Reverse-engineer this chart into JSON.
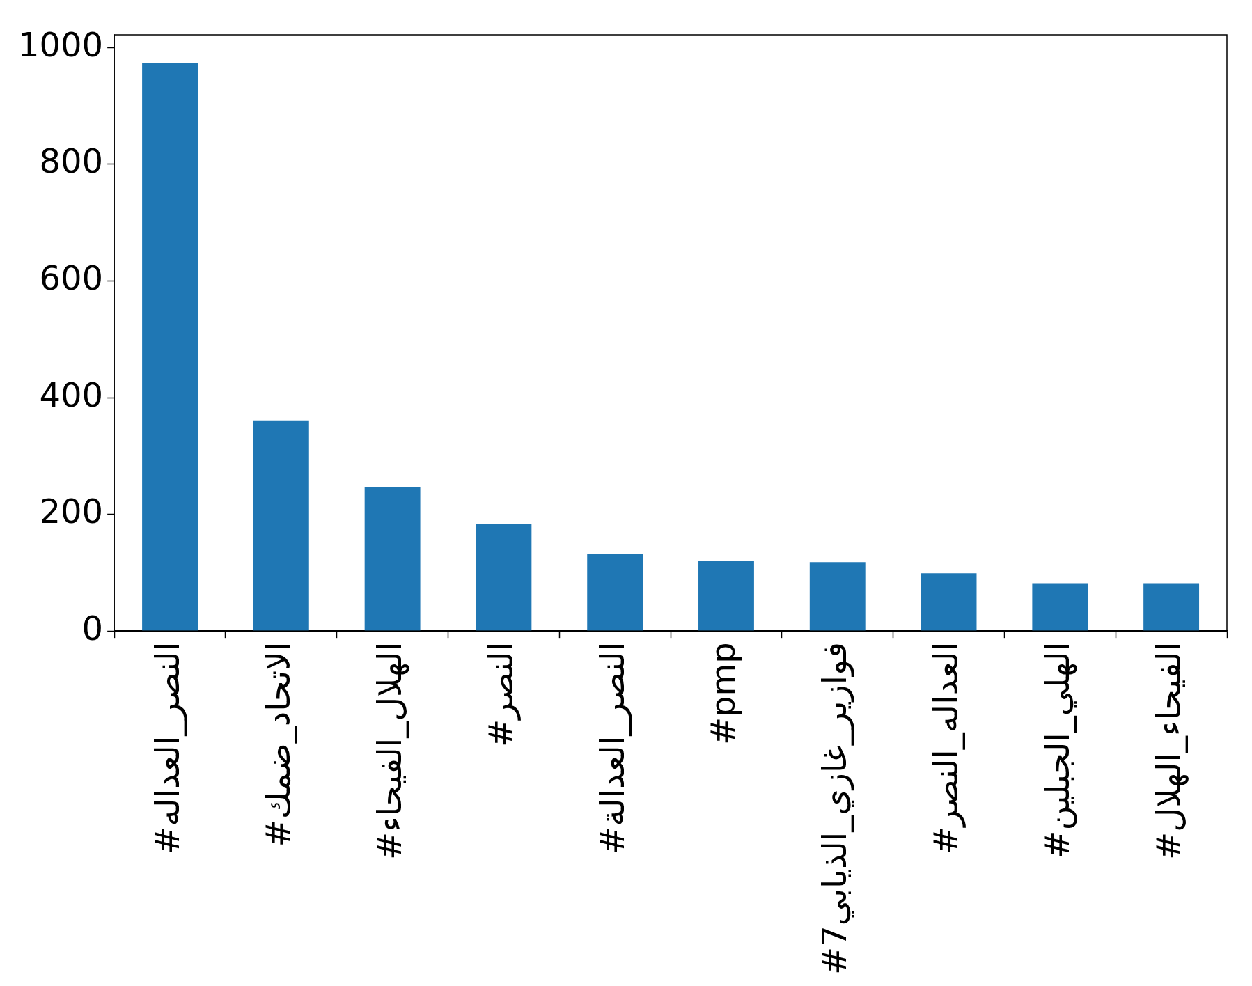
{
  "chart_data": {
    "type": "bar",
    "categories": [
      "#النصر_العداله",
      "#الاتحاد_ضمك",
      "#الهلال_الفيحاء",
      "#النصر",
      "#النصر_العدالة",
      "#pmp",
      "#فوازير_غازي_الذيابي7",
      "#العداله_النصر",
      "#الهلي_الجبلين",
      "#الفيحاء_الهلال"
    ],
    "values": [
      973,
      361,
      247,
      184,
      132,
      120,
      118,
      99,
      82,
      82
    ],
    "color": "#1f77b4",
    "ylim": [
      0,
      1022
    ],
    "yticks": [
      0,
      200,
      400,
      600,
      800,
      1000
    ],
    "grid": false,
    "legend": false
  }
}
